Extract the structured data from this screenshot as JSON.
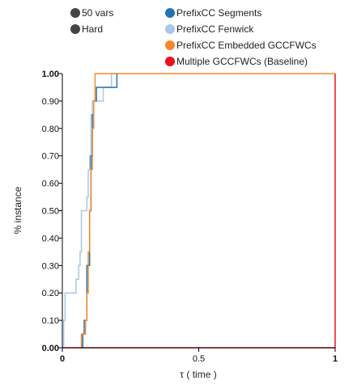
{
  "legend": {
    "filters": [
      {
        "label": "50 vars",
        "color": "#444444"
      },
      {
        "label": "Hard",
        "color": "#444444"
      }
    ],
    "series": [
      {
        "label": "PrefixCC Segments",
        "color": "#2474b4"
      },
      {
        "label": "PrefixCC Fenwick",
        "color": "#a9c7e6"
      },
      {
        "label": "PrefixCC Embedded GCCFWCs",
        "color": "#f5892a"
      },
      {
        "label": "Multiple GCCFWCs (Baseline)",
        "color": "#e8131b"
      }
    ]
  },
  "chart_data": {
    "type": "line",
    "step": true,
    "title": "",
    "xlabel": "τ ( time )",
    "ylabel": "% instance",
    "xlim": [
      0,
      1
    ],
    "ylim": [
      0,
      1
    ],
    "x_ticks": [
      {
        "value": 0,
        "label": "0"
      },
      {
        "value": 0.5,
        "label": "0.5"
      },
      {
        "value": 1,
        "label": "1"
      }
    ],
    "y_ticks": [
      {
        "value": 0,
        "label": "0.00"
      },
      {
        "value": 0.1,
        "label": "0.10"
      },
      {
        "value": 0.2,
        "label": "0.20"
      },
      {
        "value": 0.3,
        "label": "0.30"
      },
      {
        "value": 0.4,
        "label": "0.40"
      },
      {
        "value": 0.5,
        "label": "0.50"
      },
      {
        "value": 0.6,
        "label": "0.60"
      },
      {
        "value": 0.7,
        "label": "0.70"
      },
      {
        "value": 0.8,
        "label": "0.80"
      },
      {
        "value": 0.9,
        "label": "0.90"
      },
      {
        "value": 1,
        "label": "1.00"
      }
    ],
    "grid": false,
    "legend_position": "top",
    "series": [
      {
        "name": "Multiple GCCFWCs (Baseline)",
        "color": "#e8131b",
        "points": [
          [
            0,
            0
          ],
          [
            1,
            0
          ],
          [
            1,
            1
          ]
        ]
      },
      {
        "name": "PrefixCC Fenwick",
        "color": "#a9c7e6",
        "points": [
          [
            0,
            0
          ],
          [
            0.005,
            0.1
          ],
          [
            0.01,
            0.2
          ],
          [
            0.05,
            0.25
          ],
          [
            0.06,
            0.3
          ],
          [
            0.065,
            0.35
          ],
          [
            0.07,
            0.5
          ],
          [
            0.09,
            0.55
          ],
          [
            0.095,
            0.65
          ],
          [
            0.1,
            0.7
          ],
          [
            0.105,
            0.85
          ],
          [
            0.11,
            0.9
          ],
          [
            0.13,
            0.9
          ],
          [
            0.15,
            0.95
          ],
          [
            0.18,
            1.0
          ],
          [
            0.2,
            1.0
          ]
        ]
      },
      {
        "name": "PrefixCC Segments",
        "color": "#2474b4",
        "points": [
          [
            0.065,
            0
          ],
          [
            0.075,
            0.05
          ],
          [
            0.08,
            0.1
          ],
          [
            0.09,
            0.3
          ],
          [
            0.1,
            0.5
          ],
          [
            0.105,
            0.7
          ],
          [
            0.11,
            0.85
          ],
          [
            0.115,
            0.9
          ],
          [
            0.125,
            0.95
          ],
          [
            0.2,
            1.0
          ]
        ]
      },
      {
        "name": "PrefixCC Embedded GCCFWCs",
        "color": "#f5892a",
        "points": [
          [
            0.065,
            0
          ],
          [
            0.07,
            0.05
          ],
          [
            0.085,
            0.1
          ],
          [
            0.09,
            0.2
          ],
          [
            0.095,
            0.35
          ],
          [
            0.1,
            0.5
          ],
          [
            0.105,
            0.65
          ],
          [
            0.11,
            0.8
          ],
          [
            0.115,
            0.9
          ],
          [
            0.12,
            1.0
          ],
          [
            1,
            1.0
          ]
        ]
      }
    ]
  }
}
